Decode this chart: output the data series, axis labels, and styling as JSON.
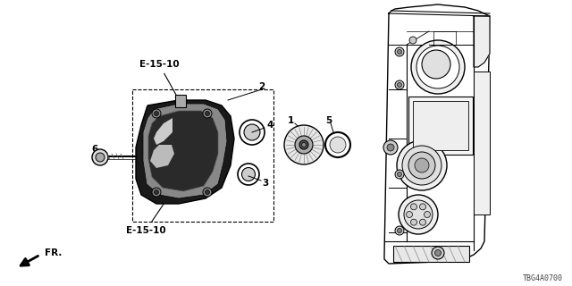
{
  "background_color": "#ffffff",
  "line_color": "#000000",
  "part_number": "TBG4A0700",
  "labels": {
    "E15_10_top": "E-15-10",
    "E15_10_bot": "E-15-10",
    "num1": "1",
    "num2": "2",
    "num3": "3",
    "num4": "4",
    "num5": "5",
    "num6": "6",
    "fr": "FR."
  },
  "fig_width": 6.4,
  "fig_height": 3.2
}
